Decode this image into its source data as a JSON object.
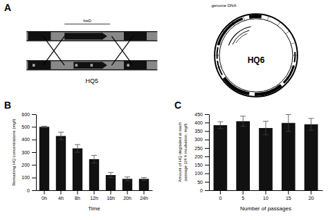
{
  "chart_data": [
    {
      "type": "diagram",
      "title": "A",
      "annotations": [
        "hisD",
        "HQ5",
        "HQ6",
        "genome DNA"
      ]
    },
    {
      "type": "bar",
      "title": "B",
      "categories": [
        "0h",
        "4h",
        "8h",
        "12h",
        "16h",
        "20h",
        "24h"
      ],
      "values": [
        500,
        428,
        330,
        245,
        120,
        90,
        90
      ],
      "errors": [
        5,
        30,
        30,
        30,
        20,
        15,
        10
      ],
      "color": "#111111",
      "xlabel": "Time",
      "ylabel": "Remaining HQ concentrations (mg/l)",
      "ylim": [
        0,
        600
      ],
      "yticks": [
        0,
        100,
        200,
        300,
        400,
        500,
        600
      ],
      "grid": false
    },
    {
      "type": "bar",
      "title": "C",
      "categories": [
        "0",
        "5",
        "10",
        "15",
        "20"
      ],
      "values": [
        385,
        408,
        368,
        398,
        390
      ],
      "errors": [
        20,
        30,
        40,
        50,
        35
      ],
      "color": "#111111",
      "xlabel": "Number of passages",
      "ylabel": "Amount of HQ degraded at each\npassage (24 h incubation, mg/l)",
      "ylim": [
        0,
        450
      ],
      "yticks": [
        0,
        50,
        100,
        150,
        200,
        250,
        300,
        350,
        400,
        450
      ],
      "grid": false
    }
  ]
}
